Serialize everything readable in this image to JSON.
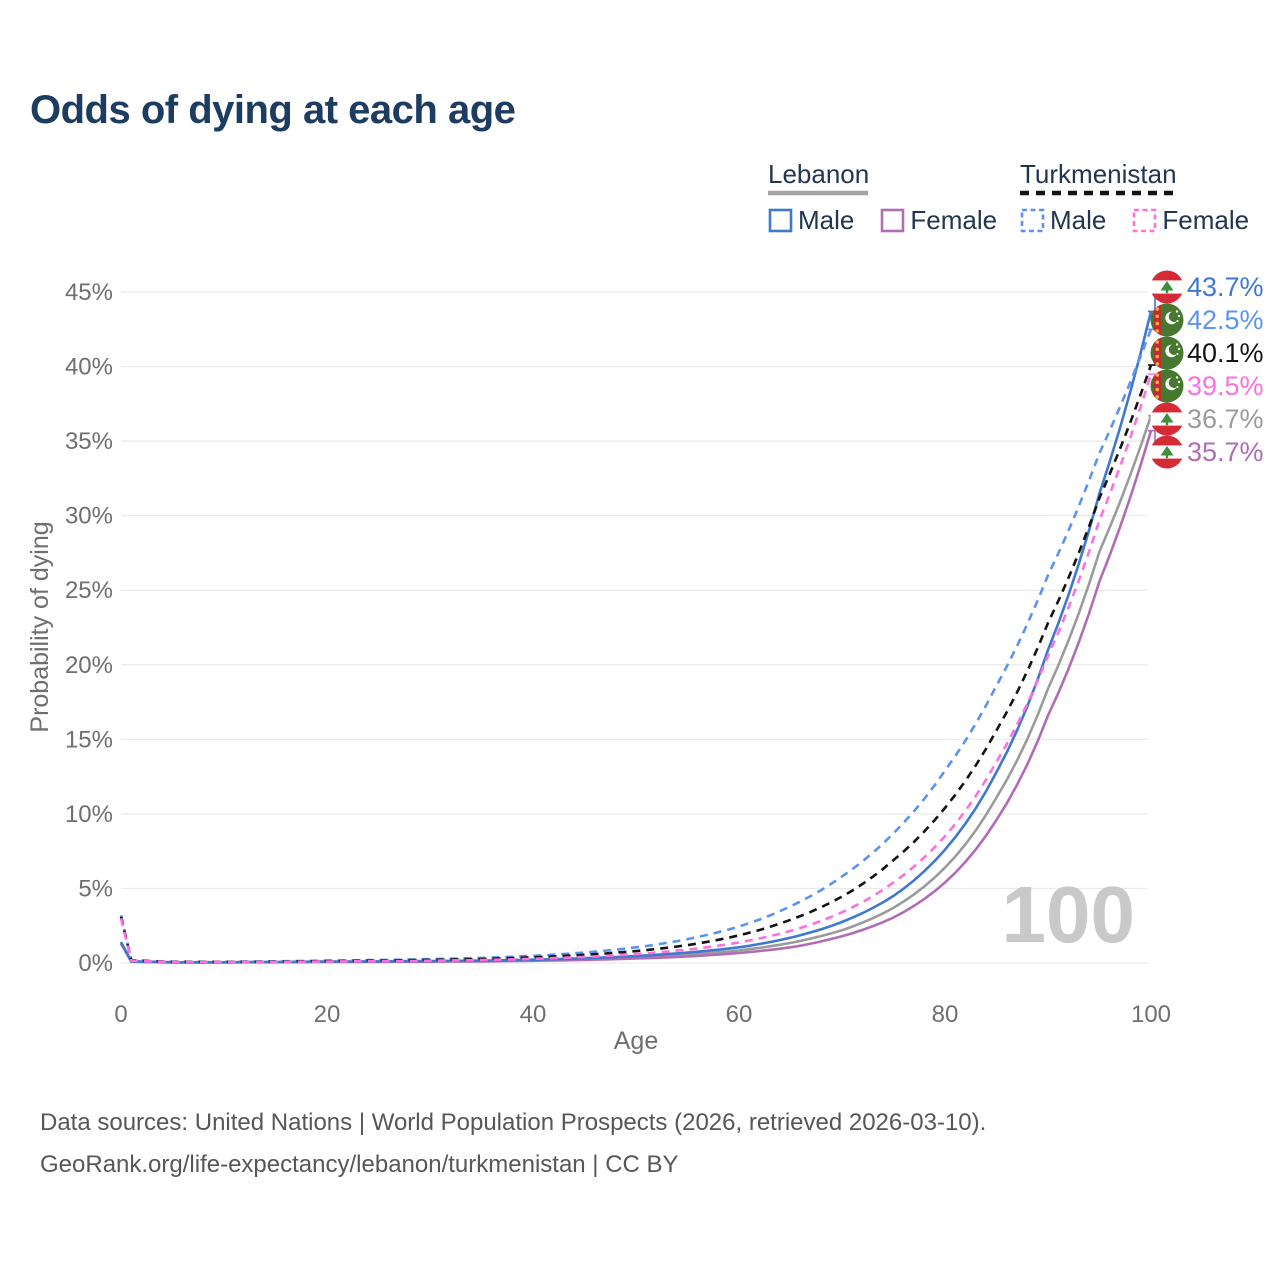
{
  "title": "Odds of dying at each age",
  "legend": {
    "groups": [
      {
        "label": "Lebanon",
        "style": "solid",
        "underline_color": "#a3a3a3",
        "items": [
          {
            "label": "Male",
            "color": "#3e78cf"
          },
          {
            "label": "Female",
            "color": "#b16cb6"
          }
        ]
      },
      {
        "label": "Turkmenistan",
        "style": "dashed",
        "underline_color": "#141414",
        "items": [
          {
            "label": "Male",
            "color": "#5b94f0"
          },
          {
            "label": "Female",
            "color": "#ff70df"
          }
        ]
      }
    ]
  },
  "axes": {
    "y_title": "Probability of dying",
    "x_title": "Age",
    "y_ticks": [
      {
        "value": 0,
        "label": "0%"
      },
      {
        "value": 5,
        "label": "5%"
      },
      {
        "value": 10,
        "label": "10%"
      },
      {
        "value": 15,
        "label": "15%"
      },
      {
        "value": 20,
        "label": "20%"
      },
      {
        "value": 25,
        "label": "25%"
      },
      {
        "value": 30,
        "label": "30%"
      },
      {
        "value": 35,
        "label": "35%"
      },
      {
        "value": 40,
        "label": "40%"
      },
      {
        "value": 45,
        "label": "45%"
      }
    ],
    "x_ticks": [
      {
        "value": 0,
        "label": "0"
      },
      {
        "value": 20,
        "label": "20"
      },
      {
        "value": 40,
        "label": "40"
      },
      {
        "value": 60,
        "label": "60"
      },
      {
        "value": 80,
        "label": "80"
      },
      {
        "value": 100,
        "label": "100"
      }
    ]
  },
  "watermark": "100",
  "footer": {
    "line1": "Data sources: United Nations | World Population Prospects (2026, retrieved 2026-03-10).",
    "line2": "GeoRank.org/life-expectancy/lebanon/turkmenistan | CC BY"
  },
  "chart_data": {
    "type": "line",
    "title": "Odds of dying at each age",
    "xlabel": "Age",
    "ylabel": "Probability of dying",
    "xlim": [
      0,
      100
    ],
    "ylim": [
      0,
      45
    ],
    "y_unit": "%",
    "grid": "horizontal",
    "legend_position": "top-right",
    "series": [
      {
        "id": "lebanon-male",
        "name": "Lebanon Male",
        "country": "Lebanon",
        "sex": "male",
        "line": "solid",
        "color": "#3e78cf",
        "flag": "lebanon",
        "end_label": "43.7%",
        "points": [
          [
            0,
            1.4
          ],
          [
            1,
            0.12
          ],
          [
            5,
            0.05
          ],
          [
            10,
            0.05
          ],
          [
            15,
            0.07
          ],
          [
            20,
            0.1
          ],
          [
            25,
            0.11
          ],
          [
            30,
            0.13
          ],
          [
            35,
            0.16
          ],
          [
            40,
            0.22
          ],
          [
            45,
            0.32
          ],
          [
            50,
            0.47
          ],
          [
            55,
            0.7
          ],
          [
            60,
            1.05
          ],
          [
            65,
            1.7
          ],
          [
            70,
            2.75
          ],
          [
            75,
            4.5
          ],
          [
            80,
            7.6
          ],
          [
            85,
            12.8
          ],
          [
            90,
            21.0
          ],
          [
            95,
            31.5
          ],
          [
            100,
            43.7
          ]
        ]
      },
      {
        "id": "turkmenistan-male",
        "name": "Turkmenistan Male",
        "country": "Turkmenistan",
        "sex": "male",
        "line": "dashed",
        "color": "#5b94f0",
        "flag": "turkmenistan",
        "end_label": "42.5%",
        "points": [
          [
            0,
            3.2
          ],
          [
            1,
            0.2
          ],
          [
            5,
            0.09
          ],
          [
            10,
            0.08
          ],
          [
            15,
            0.11
          ],
          [
            20,
            0.16
          ],
          [
            25,
            0.2
          ],
          [
            30,
            0.26
          ],
          [
            35,
            0.34
          ],
          [
            40,
            0.48
          ],
          [
            45,
            0.7
          ],
          [
            50,
            1.05
          ],
          [
            55,
            1.6
          ],
          [
            60,
            2.45
          ],
          [
            65,
            3.8
          ],
          [
            70,
            5.8
          ],
          [
            75,
            8.7
          ],
          [
            80,
            12.9
          ],
          [
            85,
            18.6
          ],
          [
            90,
            26.0
          ],
          [
            95,
            34.2
          ],
          [
            100,
            42.5
          ]
        ]
      },
      {
        "id": "turkmenistan-total",
        "name": "Turkmenistan",
        "country": "Turkmenistan",
        "sex": "both",
        "line": "dashed",
        "color": "#141414",
        "flag": "turkmenistan",
        "end_label": "40.1%",
        "points": [
          [
            0,
            3.1
          ],
          [
            1,
            0.18
          ],
          [
            5,
            0.08
          ],
          [
            10,
            0.07
          ],
          [
            15,
            0.09
          ],
          [
            20,
            0.13
          ],
          [
            25,
            0.16
          ],
          [
            30,
            0.21
          ],
          [
            35,
            0.27
          ],
          [
            40,
            0.38
          ],
          [
            45,
            0.55
          ],
          [
            50,
            0.8
          ],
          [
            55,
            1.2
          ],
          [
            60,
            1.85
          ],
          [
            65,
            2.9
          ],
          [
            70,
            4.45
          ],
          [
            75,
            6.9
          ],
          [
            80,
            10.4
          ],
          [
            85,
            15.6
          ],
          [
            90,
            22.8
          ],
          [
            95,
            31.2
          ],
          [
            100,
            40.1
          ]
        ]
      },
      {
        "id": "turkmenistan-female",
        "name": "Turkmenistan Female",
        "country": "Turkmenistan",
        "sex": "female",
        "line": "dashed",
        "color": "#ff70df",
        "flag": "turkmenistan",
        "end_label": "39.5%",
        "points": [
          [
            0,
            3.0
          ],
          [
            1,
            0.16
          ],
          [
            5,
            0.07
          ],
          [
            10,
            0.06
          ],
          [
            15,
            0.07
          ],
          [
            20,
            0.1
          ],
          [
            25,
            0.12
          ],
          [
            30,
            0.15
          ],
          [
            35,
            0.2
          ],
          [
            40,
            0.28
          ],
          [
            45,
            0.41
          ],
          [
            50,
            0.6
          ],
          [
            55,
            0.9
          ],
          [
            60,
            1.38
          ],
          [
            65,
            2.15
          ],
          [
            70,
            3.4
          ],
          [
            75,
            5.4
          ],
          [
            80,
            8.5
          ],
          [
            85,
            13.5
          ],
          [
            90,
            20.6
          ],
          [
            95,
            29.7
          ],
          [
            100,
            39.5
          ]
        ]
      },
      {
        "id": "lebanon-total",
        "name": "Lebanon",
        "country": "Lebanon",
        "sex": "both",
        "line": "solid",
        "color": "#9b9b9b",
        "flag": "lebanon",
        "end_label": "36.7%",
        "points": [
          [
            0,
            1.35
          ],
          [
            1,
            0.1
          ],
          [
            5,
            0.045
          ],
          [
            10,
            0.045
          ],
          [
            15,
            0.06
          ],
          [
            20,
            0.085
          ],
          [
            25,
            0.095
          ],
          [
            30,
            0.11
          ],
          [
            35,
            0.13
          ],
          [
            40,
            0.18
          ],
          [
            45,
            0.26
          ],
          [
            50,
            0.38
          ],
          [
            55,
            0.56
          ],
          [
            60,
            0.84
          ],
          [
            65,
            1.35
          ],
          [
            70,
            2.2
          ],
          [
            75,
            3.7
          ],
          [
            80,
            6.4
          ],
          [
            85,
            11.1
          ],
          [
            90,
            18.4
          ],
          [
            95,
            27.6
          ],
          [
            100,
            36.7
          ]
        ]
      },
      {
        "id": "lebanon-female",
        "name": "Lebanon Female",
        "country": "Lebanon",
        "sex": "female",
        "line": "solid",
        "color": "#b16cb6",
        "flag": "lebanon",
        "end_label": "35.7%",
        "points": [
          [
            0,
            1.3
          ],
          [
            1,
            0.09
          ],
          [
            5,
            0.04
          ],
          [
            10,
            0.04
          ],
          [
            15,
            0.05
          ],
          [
            20,
            0.07
          ],
          [
            25,
            0.08
          ],
          [
            30,
            0.09
          ],
          [
            35,
            0.11
          ],
          [
            40,
            0.15
          ],
          [
            45,
            0.21
          ],
          [
            50,
            0.3
          ],
          [
            55,
            0.44
          ],
          [
            60,
            0.67
          ],
          [
            65,
            1.05
          ],
          [
            70,
            1.8
          ],
          [
            75,
            3.05
          ],
          [
            80,
            5.4
          ],
          [
            85,
            9.6
          ],
          [
            90,
            16.6
          ],
          [
            95,
            25.6
          ],
          [
            100,
            35.7
          ]
        ]
      }
    ]
  }
}
